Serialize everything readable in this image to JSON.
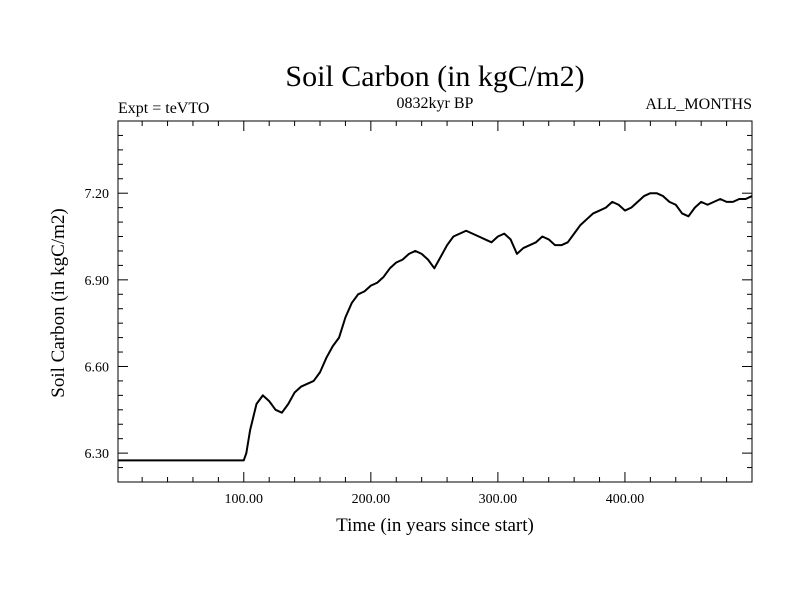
{
  "chart_data": {
    "type": "line",
    "title": "Soil Carbon (in kgC/m2)",
    "subtitle_left": "Expt = teVTO",
    "subtitle_center": "0832kyr BP",
    "subtitle_right": "ALL_MONTHS",
    "xlabel": "Time (in years since start)",
    "ylabel": "Soil Carbon (in kgC/m2)",
    "xlim": [
      1,
      500
    ],
    "ylim": [
      6.2,
      7.45
    ],
    "x_ticks": [
      100,
      200,
      300,
      400
    ],
    "x_tick_labels": [
      "100.00",
      "200.00",
      "300.00",
      "400.00"
    ],
    "x_minor_step": 20,
    "y_ticks": [
      6.3,
      6.6,
      6.9,
      7.2
    ],
    "y_tick_labels": [
      "6.30",
      "6.60",
      "6.90",
      "7.20"
    ],
    "y_minor_step": 0.05,
    "grid": false,
    "series": [
      {
        "name": "Soil Carbon",
        "color": "#000000",
        "x": [
          1,
          100,
          102,
          105,
          110,
          115,
          120,
          125,
          130,
          135,
          140,
          145,
          150,
          155,
          160,
          165,
          170,
          175,
          180,
          185,
          190,
          195,
          200,
          205,
          210,
          215,
          220,
          225,
          230,
          235,
          240,
          245,
          250,
          255,
          260,
          265,
          270,
          275,
          280,
          285,
          290,
          295,
          300,
          305,
          310,
          315,
          320,
          325,
          330,
          335,
          340,
          345,
          350,
          355,
          360,
          365,
          370,
          375,
          380,
          385,
          390,
          395,
          400,
          405,
          410,
          415,
          420,
          425,
          430,
          435,
          440,
          445,
          450,
          455,
          460,
          465,
          470,
          475,
          480,
          485,
          490,
          495,
          500
        ],
        "values": [
          6.275,
          6.275,
          6.3,
          6.38,
          6.47,
          6.5,
          6.48,
          6.45,
          6.44,
          6.47,
          6.51,
          6.53,
          6.54,
          6.55,
          6.58,
          6.63,
          6.67,
          6.7,
          6.77,
          6.82,
          6.85,
          6.86,
          6.88,
          6.89,
          6.91,
          6.94,
          6.96,
          6.97,
          6.99,
          7.0,
          6.99,
          6.97,
          6.94,
          6.98,
          7.02,
          7.05,
          7.06,
          7.07,
          7.06,
          7.05,
          7.04,
          7.03,
          7.05,
          7.06,
          7.04,
          6.99,
          7.01,
          7.02,
          7.03,
          7.05,
          7.04,
          7.02,
          7.02,
          7.03,
          7.06,
          7.09,
          7.11,
          7.13,
          7.14,
          7.15,
          7.17,
          7.16,
          7.14,
          7.15,
          7.17,
          7.19,
          7.2,
          7.2,
          7.19,
          7.17,
          7.16,
          7.13,
          7.12,
          7.15,
          7.17,
          7.16,
          7.17,
          7.18,
          7.17,
          7.17,
          7.18,
          7.18,
          7.19
        ]
      }
    ]
  }
}
